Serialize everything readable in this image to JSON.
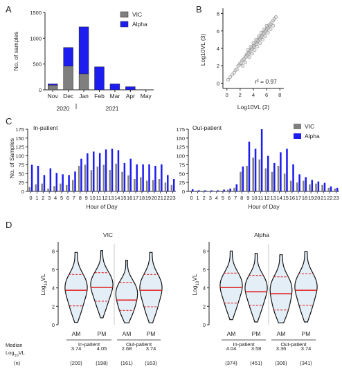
{
  "panels": [
    "A",
    "B",
    "C",
    "D"
  ],
  "colors": {
    "vic": "#7f7f7f",
    "alpha": "#1d1df0",
    "red": "#e01e1e",
    "violin_fill": "#e3eef7"
  },
  "panelA": {
    "ylabel": "No. of samples",
    "legend": [
      "VIC",
      "Alpha"
    ],
    "year_labels": [
      "2020",
      "2021"
    ]
  },
  "panelB": {
    "xlabel": "Log10VL (2)",
    "ylabel": "Log10VL (3)",
    "r2": "r² = 0.97"
  },
  "panelC": {
    "titles": [
      "In-patient",
      "Out-patient"
    ],
    "ylabel": "No. of Samples",
    "xlabel": "Hour of Day",
    "legend": [
      "VIC",
      "Alpha"
    ]
  },
  "panelD": {
    "titles": [
      "VIC",
      "Alpha"
    ],
    "ylabel": "Log10VL",
    "groups": [
      "In-patient",
      "Out-patient"
    ],
    "ampm": [
      "AM",
      "PM"
    ],
    "row_labels": [
      "Median",
      "Log10VL",
      "(n)"
    ]
  },
  "chart_data": [
    {
      "id": "A",
      "type": "bar",
      "stacked": true,
      "categories": [
        "Nov",
        "Dec",
        "Jan",
        "Feb",
        "Mar",
        "Apr",
        "May"
      ],
      "series": [
        {
          "name": "VIC",
          "values": [
            90,
            460,
            310,
            0,
            0,
            0,
            0
          ]
        },
        {
          "name": "Alpha",
          "values": [
            25,
            360,
            910,
            445,
            115,
            60,
            0
          ]
        }
      ],
      "ylabel": "No. of samples",
      "yticks": [
        0,
        500,
        1000,
        1500
      ],
      "ylim": [
        0,
        1500
      ],
      "legend": "top-right"
    },
    {
      "id": "B",
      "type": "scatter",
      "xlabel": "Log10VL (2)",
      "ylabel": "Log10VL (3)",
      "xticks": [
        0,
        2,
        4,
        6,
        8
      ],
      "yticks": [
        0,
        2,
        4,
        6,
        8
      ],
      "xlim": [
        -0.6,
        8.6
      ],
      "ylim": [
        -0.6,
        8.6
      ],
      "annotation": "r² = 0.97",
      "x": [
        0.2,
        0.5,
        0.8,
        1.1,
        1.3,
        1.5,
        1.7,
        1.9,
        2.0,
        2.2,
        2.3,
        2.5,
        2.6,
        2.8,
        2.9,
        3.0,
        3.1,
        3.2,
        3.3,
        3.4,
        3.5,
        3.6,
        3.7,
        3.8,
        3.9,
        4.0,
        4.1,
        4.2,
        4.3,
        4.4,
        4.5,
        4.6,
        4.7,
        4.8,
        4.9,
        5.0,
        5.1,
        5.2,
        5.3,
        5.4,
        5.5,
        5.6,
        5.7,
        5.8,
        5.9,
        6.0,
        6.1,
        6.2,
        6.3,
        6.4,
        6.5,
        6.6,
        6.8,
        7.0,
        7.2,
        7.4,
        3.2,
        3.6,
        4.0,
        4.4,
        4.8,
        5.2,
        5.6,
        6.0,
        2.4,
        2.8,
        3.4,
        3.8,
        4.2,
        4.6,
        5.0,
        5.4,
        5.8,
        6.2,
        6.6,
        7.0
      ],
      "y": [
        0.4,
        0.7,
        1.0,
        1.2,
        1.5,
        1.6,
        2.0,
        2.1,
        2.3,
        2.3,
        2.6,
        2.7,
        2.8,
        3.1,
        3.0,
        3.3,
        3.2,
        3.5,
        3.4,
        3.6,
        3.8,
        3.7,
        4.0,
        3.9,
        4.1,
        4.3,
        4.2,
        4.4,
        4.6,
        4.5,
        4.7,
        4.9,
        4.8,
        5.0,
        5.2,
        5.1,
        5.3,
        5.5,
        5.4,
        5.6,
        5.8,
        5.7,
        5.9,
        6.1,
        6.0,
        6.2,
        6.4,
        6.3,
        6.5,
        6.7,
        6.6,
        6.8,
        7.0,
        7.2,
        7.4,
        7.6,
        3.8,
        4.2,
        4.6,
        5.0,
        5.4,
        5.8,
        6.2,
        6.6,
        2.0,
        2.4,
        3.0,
        3.4,
        3.8,
        4.2,
        4.6,
        5.0,
        5.4,
        5.8,
        6.2,
        6.6
      ]
    },
    {
      "id": "C-in",
      "type": "bar",
      "title": "In-patient",
      "categories": [
        "0",
        "1",
        "2",
        "3",
        "4",
        "5",
        "6",
        "7",
        "8",
        "9",
        "10",
        "11",
        "12",
        "13",
        "14",
        "15",
        "16",
        "17",
        "18",
        "19",
        "20",
        "21",
        "22",
        "23"
      ],
      "series": [
        {
          "name": "VIC",
          "values": [
            12,
            20,
            22,
            8,
            15,
            22,
            18,
            32,
            72,
            75,
            60,
            70,
            75,
            60,
            78,
            55,
            45,
            35,
            40,
            30,
            32,
            35,
            25,
            18
          ]
        },
        {
          "name": "Alpha",
          "values": [
            75,
            72,
            46,
            65,
            52,
            48,
            46,
            56,
            92,
            107,
            112,
            108,
            118,
            120,
            116,
            80,
            92,
            76,
            76,
            76,
            72,
            76,
            46,
            35
          ]
        }
      ],
      "ylabel": "No. of Samples",
      "xlabel": "Hour of Day",
      "yticks": [
        0,
        25,
        50,
        75,
        100,
        125,
        150,
        175
      ],
      "ylim": [
        0,
        175
      ]
    },
    {
      "id": "C-out",
      "type": "bar",
      "title": "Out-patient",
      "categories": [
        "0",
        "1",
        "2",
        "3",
        "4",
        "5",
        "6",
        "7",
        "8",
        "9",
        "10",
        "11",
        "12",
        "13",
        "14",
        "15",
        "16",
        "17",
        "18",
        "19",
        "20",
        "21",
        "22",
        "23"
      ],
      "series": [
        {
          "name": "VIC",
          "values": [
            2,
            2,
            0,
            1,
            1,
            2,
            5,
            10,
            55,
            72,
            95,
            90,
            65,
            55,
            72,
            50,
            30,
            25,
            30,
            20,
            22,
            18,
            10,
            8
          ]
        },
        {
          "name": "Alpha",
          "values": [
            6,
            3,
            3,
            3,
            3,
            5,
            8,
            20,
            70,
            140,
            120,
            175,
            100,
            80,
            110,
            120,
            76,
            48,
            40,
            32,
            28,
            24,
            14,
            10
          ]
        }
      ],
      "xlabel": "Hour of Day",
      "yticks": [
        0,
        25,
        50,
        75,
        100,
        125,
        150,
        175
      ],
      "ylim": [
        0,
        175
      ],
      "legend": "top-right"
    },
    {
      "id": "D-VIC",
      "type": "violin",
      "title": "VIC",
      "ylabel": "Log10VL",
      "yticks": [
        0,
        2,
        4,
        6,
        8
      ],
      "ylim": [
        0,
        9
      ],
      "groups": [
        {
          "name": "In-patient AM",
          "median": 3.74,
          "q1": 2.05,
          "q3": 5.45,
          "n": 200
        },
        {
          "name": "In-patient PM",
          "median": 4.05,
          "q1": 2.55,
          "q3": 5.65,
          "n": 198
        },
        {
          "name": "Out-patient AM",
          "median": 2.68,
          "q1": 1.55,
          "q3": 4.6,
          "n": 161
        },
        {
          "name": "Out-patient PM",
          "median": 3.74,
          "q1": 1.95,
          "q3": 5.45,
          "n": 163
        }
      ],
      "median_labels": [
        "3.74",
        "4.05",
        "2.68",
        "3.74"
      ],
      "n_labels": [
        "(200)",
        "(198)",
        "(161)",
        "(163)"
      ]
    },
    {
      "id": "D-Alpha",
      "type": "violin",
      "title": "Alpha",
      "ylabel": "Log10VL",
      "yticks": [
        0,
        2,
        4,
        6,
        8
      ],
      "ylim": [
        0,
        9
      ],
      "groups": [
        {
          "name": "In-patient AM",
          "median": 4.04,
          "q1": 2.35,
          "q3": 5.6,
          "n": 374
        },
        {
          "name": "In-patient PM",
          "median": 3.58,
          "q1": 2.1,
          "q3": 5.35,
          "n": 451
        },
        {
          "name": "Out-patient AM",
          "median": 3.36,
          "q1": 1.6,
          "q3": 5.2,
          "n": 306
        },
        {
          "name": "Out-patient PM",
          "median": 3.74,
          "q1": 2.1,
          "q3": 5.55,
          "n": 341
        }
      ],
      "median_labels": [
        "4.04",
        "3.58",
        "3.36",
        "3.74"
      ],
      "n_labels": [
        "(374)",
        "(451)",
        "(306)",
        "(341)"
      ]
    }
  ]
}
